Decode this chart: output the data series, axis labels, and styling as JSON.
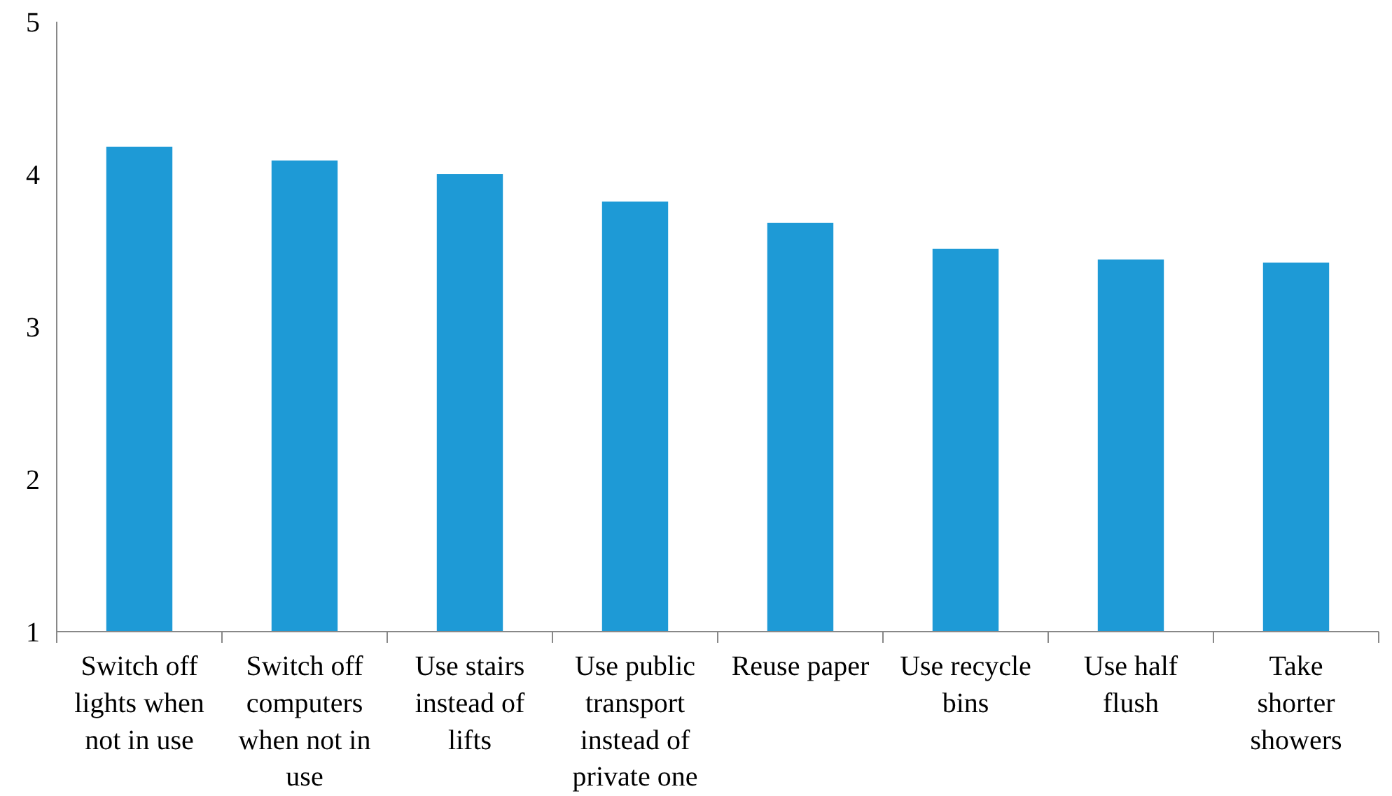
{
  "chart_data": {
    "type": "bar",
    "categories": [
      "Switch off lights when not in use",
      "Switch off computers when not in use",
      "Use stairs instead of lifts",
      "Use public transport instead of private one",
      "Reuse paper",
      "Use recycle bins",
      "Use half flush",
      "Take shorter showers"
    ],
    "values": [
      4.18,
      4.09,
      4.0,
      3.82,
      3.68,
      3.51,
      3.44,
      3.42
    ],
    "color": "#1e9ad6",
    "ylim": [
      1,
      5
    ],
    "yticks": [
      1,
      2,
      3,
      4,
      5
    ],
    "grid": false
  }
}
